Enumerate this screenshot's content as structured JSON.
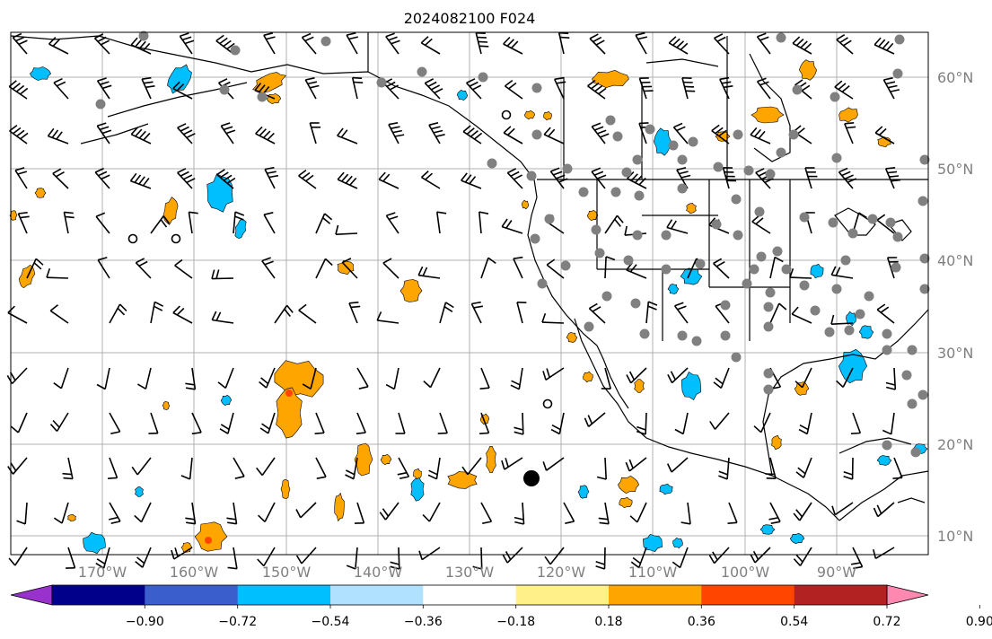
{
  "title": "2024082100 F024",
  "lon_labels": [
    "170°W",
    "160°W",
    "150°W",
    "140°W",
    "130°W",
    "120°W",
    "110°W",
    "100°W",
    "90°W"
  ],
  "lat_labels": [
    "60°N",
    "50°N",
    "40°N",
    "30°N",
    "20°N",
    "10°N"
  ],
  "colorbar": {
    "labels": [
      "−0.90",
      "−0.72",
      "−0.54",
      "−0.36",
      "−0.18",
      "0.18",
      "0.36",
      "0.54",
      "0.72",
      "0.90"
    ],
    "colors": [
      "#9932cc",
      "#00008b",
      "#3a5fcd",
      "#00bfff",
      "#b0e2ff",
      "#ffffff",
      "#fff08a",
      "#ffa500",
      "#ff4500",
      "#b22222",
      "#ff88b0"
    ]
  },
  "colors": {
    "land_line": "#000000",
    "grid": "#b0b0b0",
    "station": "#808080",
    "positive": "#ffa500",
    "negative": "#00bfff"
  }
}
